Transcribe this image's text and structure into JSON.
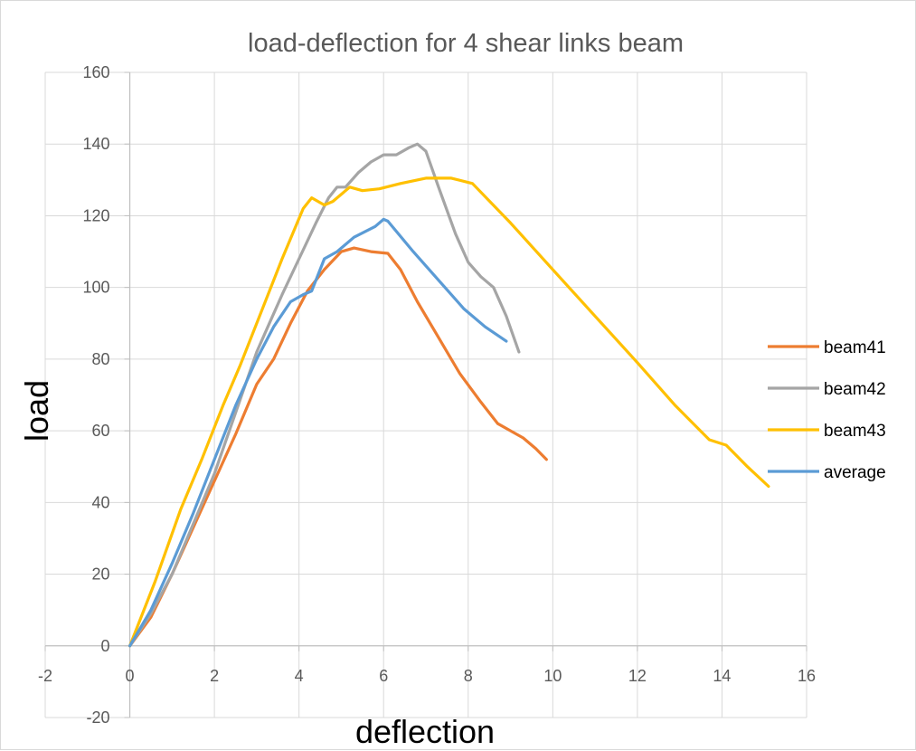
{
  "chart_data": {
    "type": "line",
    "title": "load-deflection for 4 shear links beam",
    "xlabel": "deflection",
    "ylabel": "load",
    "xlim": [
      -2,
      16
    ],
    "ylim": [
      -20,
      160
    ],
    "xticks": [
      -2,
      0,
      2,
      4,
      6,
      8,
      10,
      12,
      14,
      16
    ],
    "yticks": [
      -20,
      0,
      20,
      40,
      60,
      80,
      100,
      120,
      140,
      160
    ],
    "grid": true,
    "legend_position": "right",
    "series": [
      {
        "name": "beam41",
        "color": "#ed7d31",
        "points": [
          [
            0,
            0
          ],
          [
            0.5,
            8
          ],
          [
            1,
            20
          ],
          [
            1.5,
            33
          ],
          [
            2,
            46
          ],
          [
            2.5,
            59
          ],
          [
            3,
            73
          ],
          [
            3.4,
            80
          ],
          [
            3.8,
            90
          ],
          [
            4.2,
            99
          ],
          [
            4.6,
            105
          ],
          [
            5,
            110
          ],
          [
            5.3,
            111
          ],
          [
            5.7,
            110
          ],
          [
            6.1,
            109.5
          ],
          [
            6.4,
            105
          ],
          [
            6.8,
            96
          ],
          [
            7.3,
            86
          ],
          [
            7.8,
            76
          ],
          [
            8.3,
            68
          ],
          [
            8.7,
            62
          ],
          [
            9,
            60
          ],
          [
            9.3,
            58
          ],
          [
            9.6,
            55
          ],
          [
            9.85,
            52
          ]
        ]
      },
      {
        "name": "beam42",
        "color": "#a5a5a5",
        "points": [
          [
            0,
            0
          ],
          [
            0.5,
            9
          ],
          [
            1,
            20
          ],
          [
            1.5,
            34
          ],
          [
            2,
            48
          ],
          [
            2.5,
            65
          ],
          [
            3,
            82
          ],
          [
            3.3,
            90
          ],
          [
            3.6,
            98
          ],
          [
            4,
            108
          ],
          [
            4.4,
            118
          ],
          [
            4.7,
            125
          ],
          [
            4.9,
            128
          ],
          [
            5.1,
            128
          ],
          [
            5.4,
            132
          ],
          [
            5.7,
            135
          ],
          [
            6,
            137
          ],
          [
            6.3,
            137
          ],
          [
            6.6,
            139
          ],
          [
            6.8,
            140
          ],
          [
            7,
            138
          ],
          [
            7.3,
            128
          ],
          [
            7.7,
            115
          ],
          [
            8,
            107
          ],
          [
            8.3,
            103
          ],
          [
            8.6,
            100
          ],
          [
            8.9,
            92
          ],
          [
            9.2,
            82
          ]
        ]
      },
      {
        "name": "beam43",
        "color": "#ffc000",
        "points": [
          [
            0,
            0
          ],
          [
            0.6,
            18
          ],
          [
            1.2,
            38
          ],
          [
            1.7,
            52
          ],
          [
            2.2,
            67
          ],
          [
            2.6,
            78
          ],
          [
            3.1,
            93
          ],
          [
            3.6,
            108
          ],
          [
            4.1,
            122
          ],
          [
            4.3,
            125
          ],
          [
            4.6,
            123
          ],
          [
            4.8,
            124
          ],
          [
            5.2,
            128
          ],
          [
            5.5,
            127
          ],
          [
            5.9,
            127.5
          ],
          [
            6.4,
            129
          ],
          [
            7,
            130.5
          ],
          [
            7.6,
            130.5
          ],
          [
            8.1,
            129
          ],
          [
            9,
            118
          ],
          [
            10,
            105
          ],
          [
            11,
            92
          ],
          [
            12,
            79
          ],
          [
            12.9,
            67
          ],
          [
            13.7,
            57.5
          ],
          [
            14.1,
            56
          ],
          [
            14.6,
            50
          ],
          [
            15.1,
            44.5
          ]
        ]
      },
      {
        "name": "average",
        "color": "#5b9bd5",
        "points": [
          [
            0,
            0
          ],
          [
            0.5,
            10
          ],
          [
            1,
            23
          ],
          [
            1.5,
            37
          ],
          [
            2,
            52
          ],
          [
            2.5,
            67
          ],
          [
            3,
            80
          ],
          [
            3.4,
            89
          ],
          [
            3.8,
            96
          ],
          [
            4.1,
            98
          ],
          [
            4.3,
            99
          ],
          [
            4.6,
            108
          ],
          [
            4.9,
            110
          ],
          [
            5.3,
            114
          ],
          [
            5.8,
            117
          ],
          [
            6,
            119
          ],
          [
            6.1,
            118.5
          ],
          [
            6.7,
            110
          ],
          [
            7.3,
            102
          ],
          [
            7.9,
            94
          ],
          [
            8.4,
            89
          ],
          [
            8.9,
            85
          ]
        ]
      }
    ]
  }
}
